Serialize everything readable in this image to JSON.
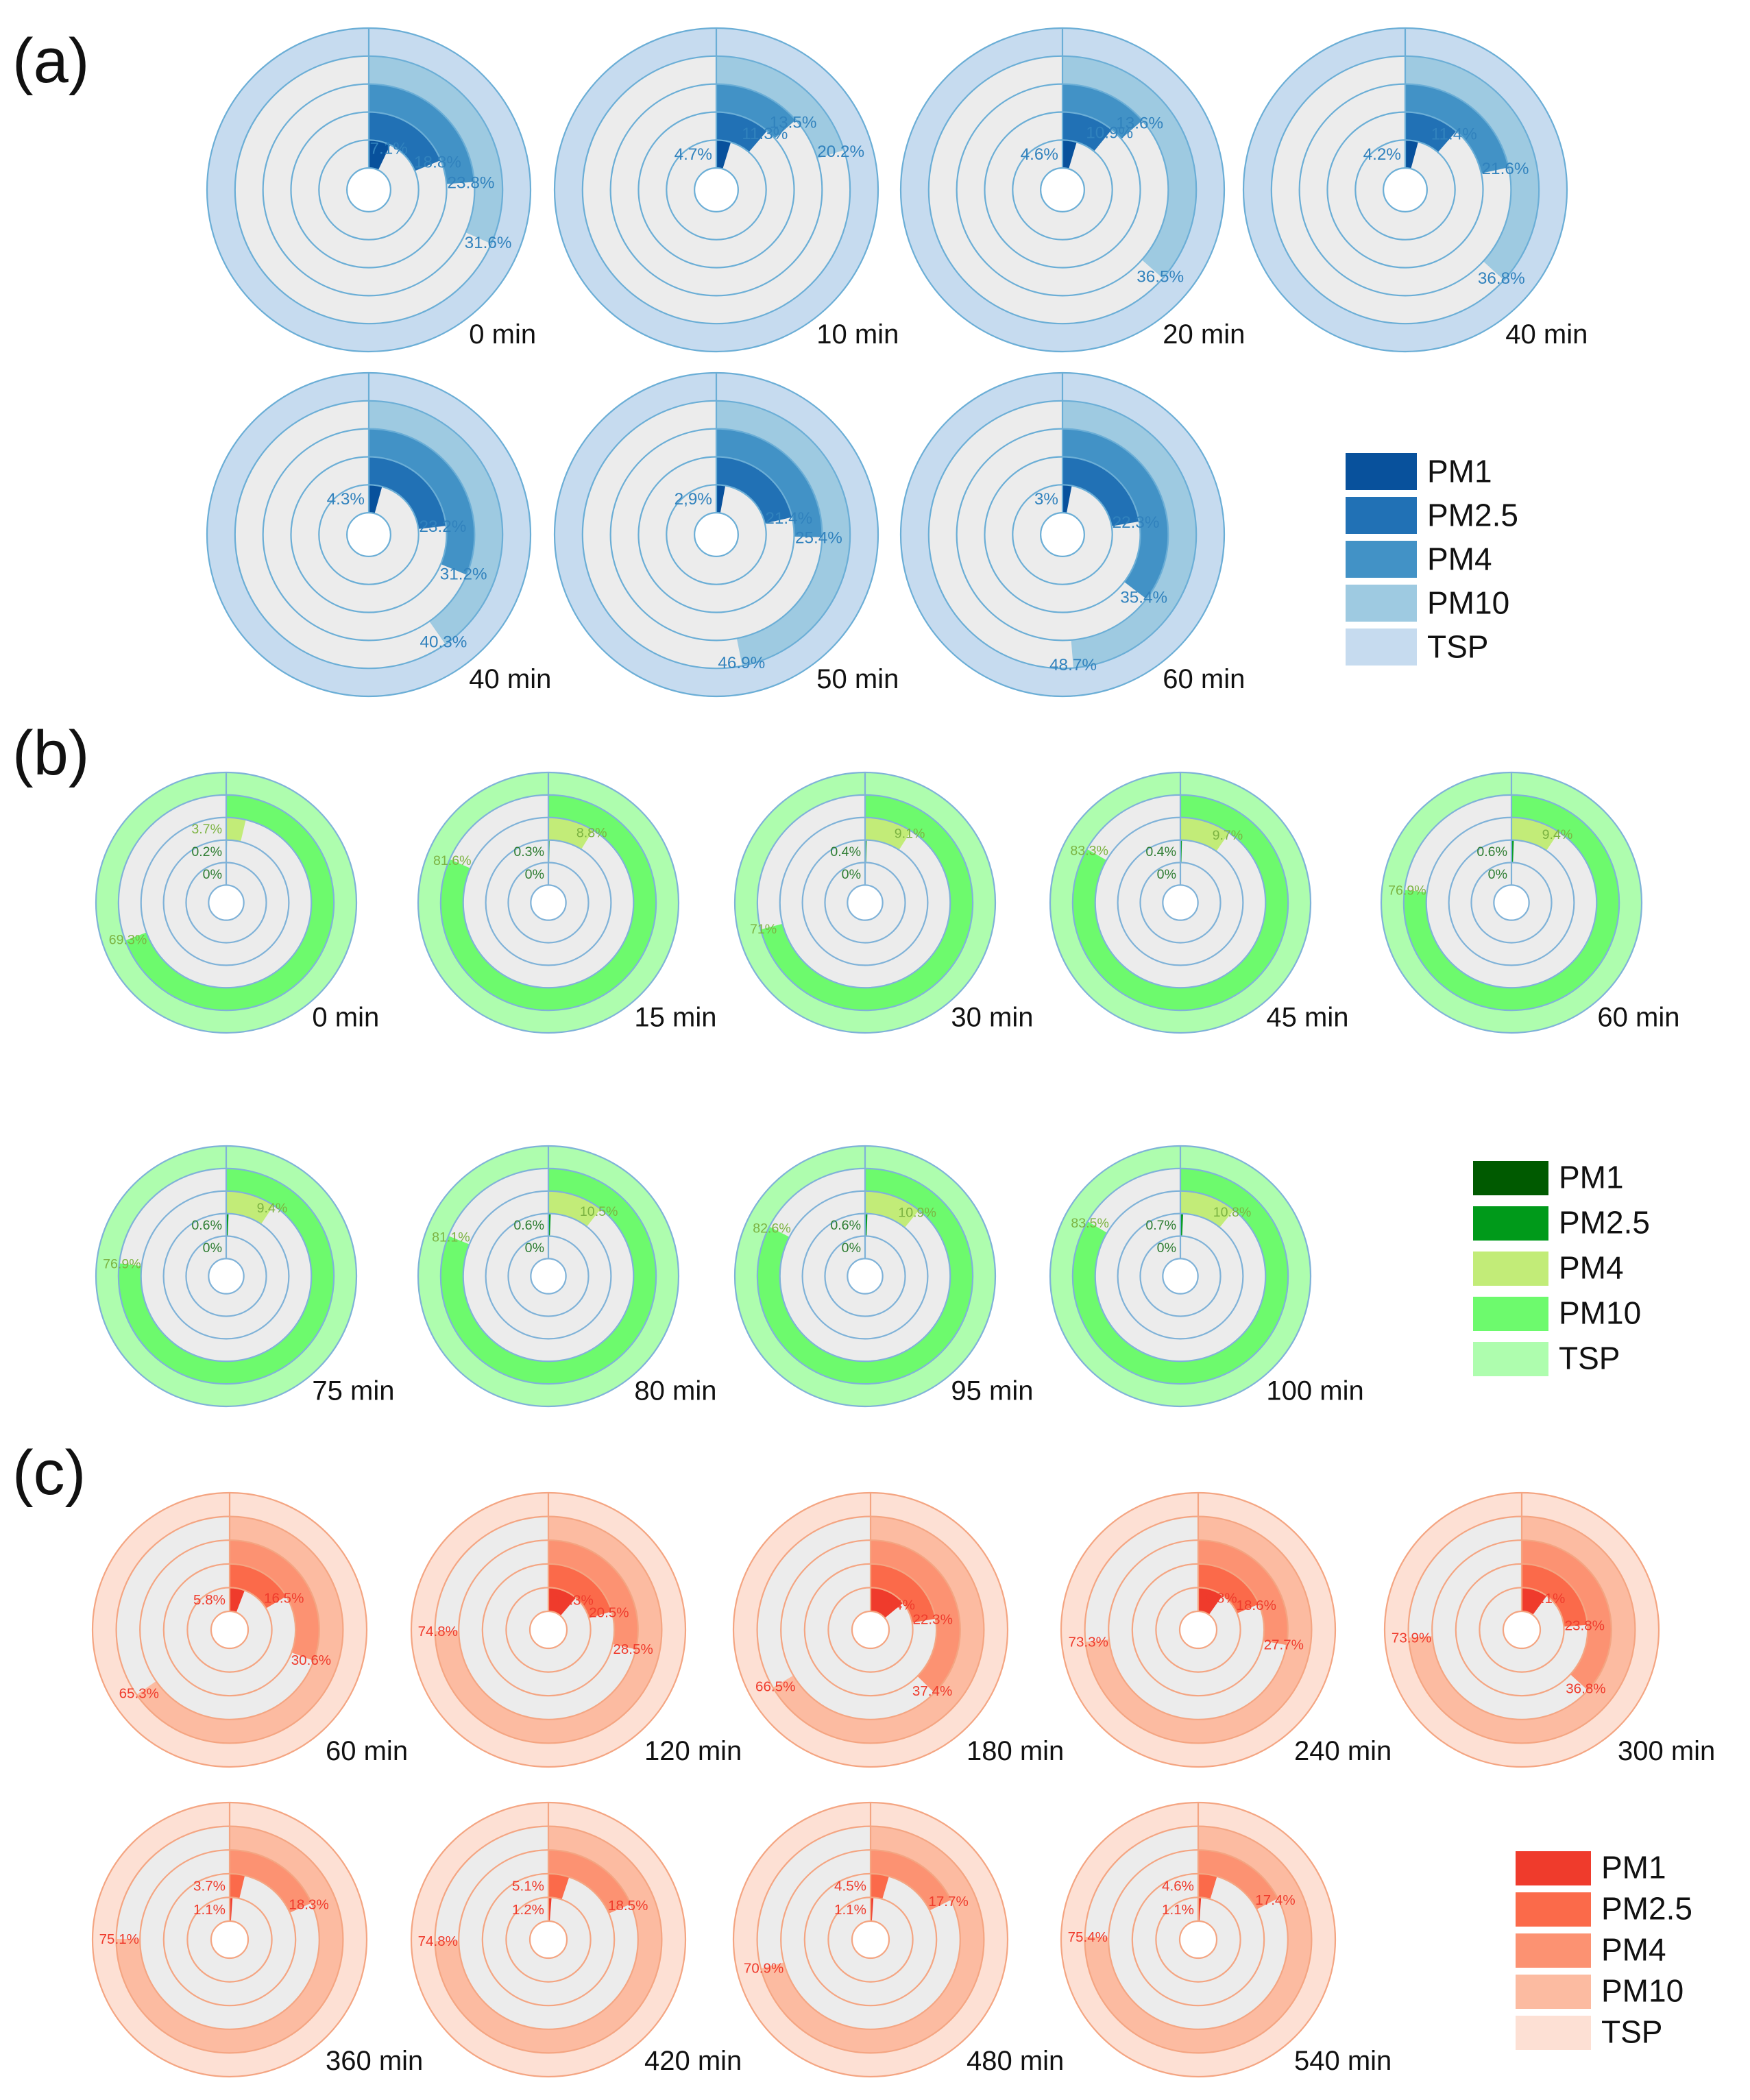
{
  "chart_data": {
    "type": "nested-donut",
    "ring_order_inner_to_outer": [
      "PM1",
      "PM2.5",
      "PM4",
      "PM10",
      "TSP"
    ],
    "panels": [
      {
        "label": "(a)",
        "colors": {
          "PM1": "#08519c",
          "PM2.5": "#2171b5",
          "PM4": "#4292c6",
          "PM10": "#9ecae1",
          "TSP": "#c6dbef",
          "background": "#ececec",
          "separator": "#6baed6",
          "text": "#3182bd"
        },
        "legend": [
          "PM1",
          "PM2.5",
          "PM4",
          "PM10",
          "TSP"
        ],
        "charts": [
          {
            "time": "0 min",
            "values": [
              7.1,
              18.8,
              23.8,
              31.6,
              100
            ],
            "labels": [
              "7.1%",
              "18.8%",
              "23.8%",
              "31.6%",
              ""
            ]
          },
          {
            "time": "10 min",
            "values": [
              4.7,
              11.3,
              13.5,
              20.2,
              100
            ],
            "labels": [
              "4.7%",
              "11.3%",
              "13.5%",
              "20.2%",
              ""
            ]
          },
          {
            "time": "20 min",
            "values": [
              4.6,
              10.9,
              13.6,
              36.5,
              100
            ],
            "labels": [
              "4.6%",
              "10.9%",
              "13.6%",
              "36.5%",
              ""
            ]
          },
          {
            "time": "40 min",
            "values": [
              4.2,
              11.4,
              21.6,
              36.8,
              100
            ],
            "labels": [
              "4.2%",
              "11.4%",
              "21.6%",
              "36.8%",
              ""
            ]
          },
          {
            "time": "40 min",
            "values": [
              4.3,
              23.2,
              31.2,
              40.3,
              100
            ],
            "labels": [
              "4.3%",
              "23.2%",
              "31.2%",
              "40.3%",
              ""
            ]
          },
          {
            "time": "50 min",
            "values": [
              2.9,
              21.4,
              25.4,
              46.9,
              100
            ],
            "labels": [
              "2,9%",
              "21.4%",
              "25.4%",
              "46.9%",
              ""
            ]
          },
          {
            "time": "60 min",
            "values": [
              3,
              22.3,
              35.4,
              48.7,
              100
            ],
            "labels": [
              "3%",
              "22.3%",
              "35.4%",
              "48.7%",
              ""
            ]
          }
        ]
      },
      {
        "label": "(b)",
        "colors": {
          "PM1": "#005a00",
          "PM2.5": "#009a1a",
          "PM4": "#c2ec78",
          "PM10": "#6dfa6d",
          "TSP": "#aefdae",
          "background": "#ececec",
          "separator": "#7fb2d8",
          "text": "#7cb342"
        },
        "legend": [
          "PM1",
          "PM2.5",
          "PM4",
          "PM10",
          "TSP"
        ],
        "charts": [
          {
            "time": "0 min",
            "values": [
              0,
              0.2,
              3.7,
              69.3,
              100
            ],
            "labels": [
              "0%",
              "0.2%",
              "3.7%",
              "69.3%",
              ""
            ]
          },
          {
            "time": "15 min",
            "values": [
              0,
              0.3,
              8.8,
              81.6,
              100
            ],
            "labels": [
              "0%",
              "0.3%",
              "8.8%",
              "81.6%",
              ""
            ]
          },
          {
            "time": "30 min",
            "values": [
              0,
              0.4,
              9.1,
              71,
              100
            ],
            "labels": [
              "0%",
              "0.4%",
              "9.1%",
              "71%",
              ""
            ]
          },
          {
            "time": "45 min",
            "values": [
              0,
              0.4,
              9.7,
              83.3,
              100
            ],
            "labels": [
              "0%",
              "0.4%",
              "9.7%",
              "83.3%",
              ""
            ]
          },
          {
            "time": "60 min",
            "values": [
              0,
              0.6,
              9.4,
              76.9,
              100
            ],
            "labels": [
              "0%",
              "0.6%",
              "9.4%",
              "76.9%",
              ""
            ]
          },
          {
            "time": "75 min",
            "values": [
              0,
              0.6,
              9.4,
              76.9,
              100
            ],
            "labels": [
              "0%",
              "0.6%",
              "9.4%",
              "76.9%",
              ""
            ]
          },
          {
            "time": "80 min",
            "values": [
              0,
              0.6,
              10.5,
              81.1,
              100
            ],
            "labels": [
              "0%",
              "0.6%",
              "10.5%",
              "81.1%",
              ""
            ]
          },
          {
            "time": "95 min",
            "values": [
              0,
              0.6,
              10.9,
              82.6,
              100
            ],
            "labels": [
              "0%",
              "0.6%",
              "10.9%",
              "82.6%",
              ""
            ]
          },
          {
            "time": "100 min",
            "values": [
              0,
              0.7,
              10.8,
              83.5,
              100
            ],
            "labels": [
              "0%",
              "0.7%",
              "10.8%",
              "83.5%",
              ""
            ]
          }
        ]
      },
      {
        "label": "(c)",
        "colors": {
          "PM1": "#ef3b2c",
          "PM2.5": "#fb6a4a",
          "PM4": "#fc9272",
          "PM10": "#fcbba1",
          "TSP": "#fde0d4",
          "background": "#ececec",
          "separator": "#f4a582",
          "text": "#ef3b2c"
        },
        "legend": [
          "PM1",
          "PM2.5",
          "PM4",
          "PM10",
          "TSP"
        ],
        "charts": [
          {
            "time": "60 min",
            "values": [
              5.8,
              16.5,
              30.6,
              65.3,
              100
            ],
            "labels": [
              "5.8%",
              "16.5%",
              "30.6%",
              "65.3%",
              ""
            ]
          },
          {
            "time": "120 min",
            "values": [
              11.3,
              20.5,
              28.5,
              74.8,
              100
            ],
            "labels": [
              "11.3%",
              "20.5%",
              "28.5%",
              "74.8%",
              ""
            ]
          },
          {
            "time": "180 min",
            "values": [
              14,
              22.3,
              37.4,
              66.5,
              100
            ],
            "labels": [
              "14%",
              "22.3%",
              "37.4%",
              "66.5%",
              ""
            ]
          },
          {
            "time": "240 min",
            "values": [
              9.8,
              18.6,
              27.7,
              73.3,
              100
            ],
            "labels": [
              "9.8%",
              "18.6%",
              "27.7%",
              "73.3%",
              ""
            ]
          },
          {
            "time": "300 min",
            "values": [
              10.1,
              23.8,
              36.8,
              73.9,
              100
            ],
            "labels": [
              "10.1%",
              "23.8%",
              "36.8%",
              "73.9%",
              ""
            ]
          },
          {
            "time": "360 min",
            "values": [
              1.1,
              3.7,
              18.3,
              75.1,
              100
            ],
            "labels": [
              "1.1%",
              "3.7%",
              "18.3%",
              "75.1%",
              ""
            ]
          },
          {
            "time": "420 min",
            "values": [
              1.2,
              5.1,
              18.5,
              74.8,
              100
            ],
            "labels": [
              "1.2%",
              "5.1%",
              "18.5%",
              "74.8%",
              ""
            ]
          },
          {
            "time": "480 min",
            "values": [
              1.1,
              4.5,
              17.7,
              70.9,
              100
            ],
            "labels": [
              "1.1%",
              "4.5%",
              "17.7%",
              "70.9%",
              ""
            ]
          },
          {
            "time": "540 min",
            "values": [
              1.1,
              4.6,
              17.4,
              75.4,
              100
            ],
            "labels": [
              "1.1%",
              "4.6%",
              "17.4%",
              "75.4%",
              ""
            ]
          }
        ]
      }
    ]
  }
}
